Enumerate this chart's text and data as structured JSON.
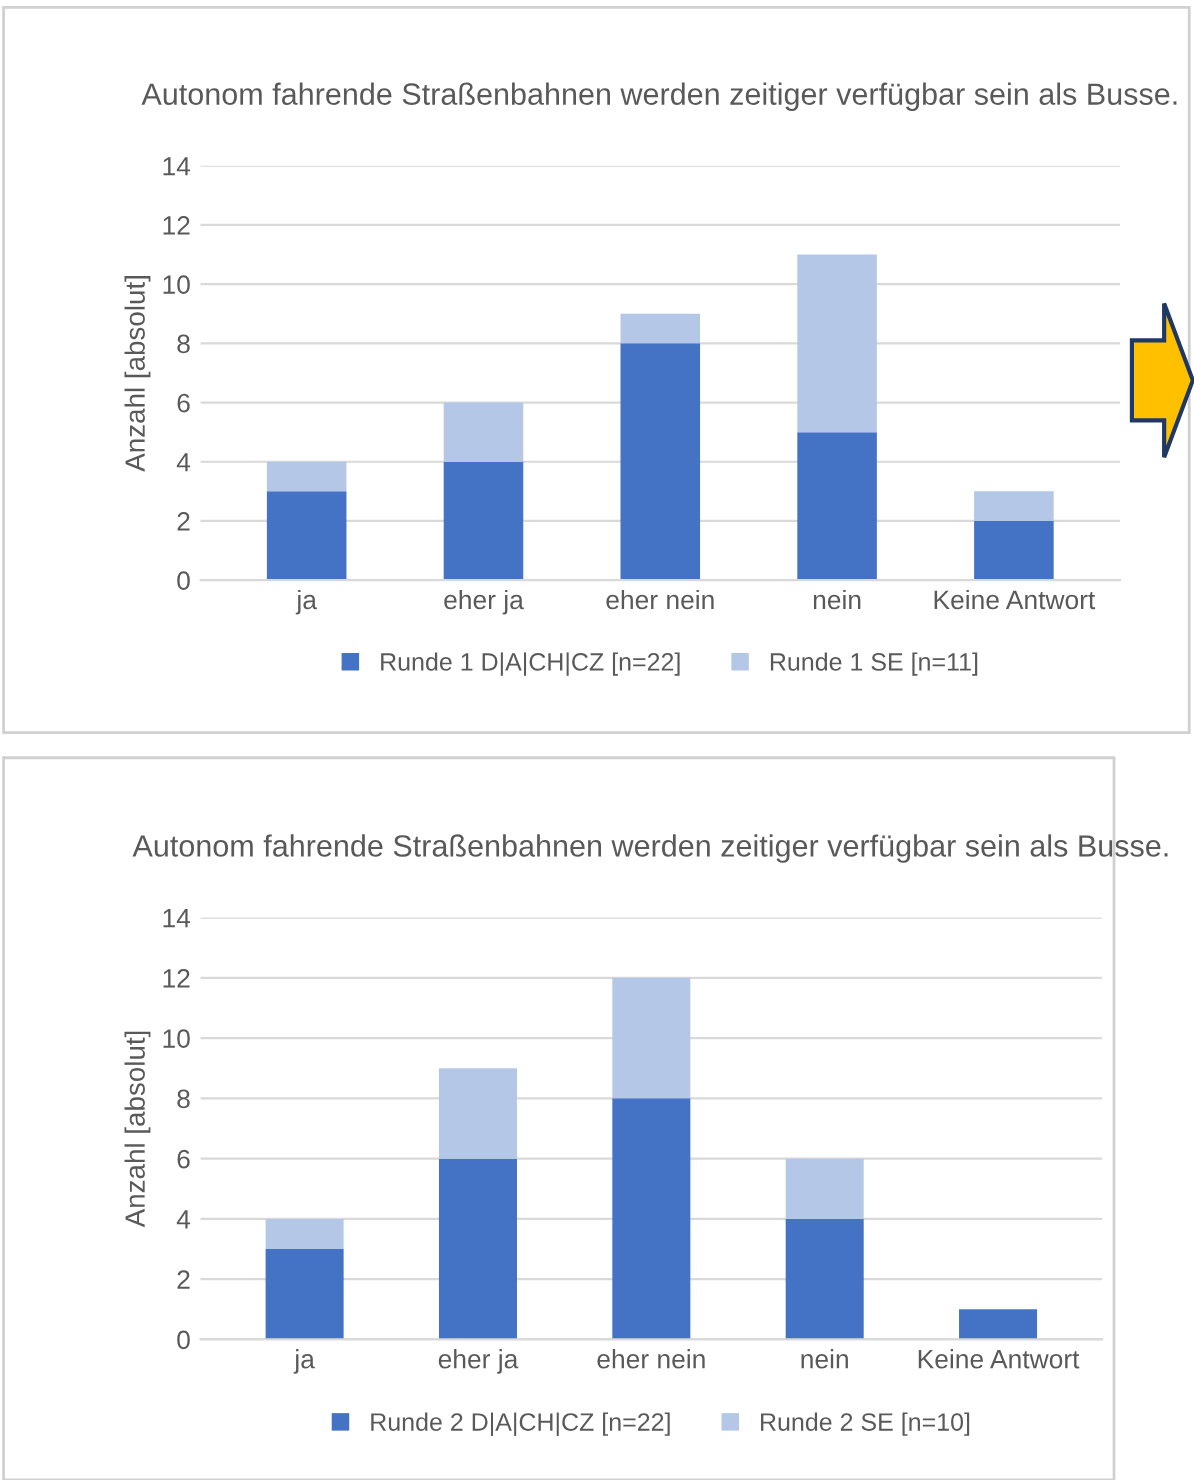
{
  "chart_data": [
    {
      "type": "bar",
      "stacked": true,
      "title": "Autonom fahrende Straßenbahnen werden zeitiger verfügbar sein als Busse.",
      "ylabel": "Anzahl [absolut]",
      "categories": [
        "ja",
        "eher ja",
        "eher nein",
        "nein",
        "Keine Antwort"
      ],
      "series": [
        {
          "name": "Runde 1 D|A|CH|CZ [n=22]",
          "color": "#4472c4",
          "values": [
            3,
            4,
            8,
            5,
            2
          ]
        },
        {
          "name": "Runde 1 SE [n=11]",
          "color": "#b4c7e7",
          "values": [
            1,
            2,
            1,
            6,
            1
          ]
        }
      ],
      "ylim": [
        0,
        14
      ],
      "yticks": [
        0,
        2,
        4,
        6,
        8,
        10,
        12,
        14
      ],
      "grid": "y",
      "legend": "bottom"
    },
    {
      "type": "bar",
      "stacked": true,
      "title": "Autonom fahrende Straßenbahnen werden zeitiger verfügbar sein als Busse.",
      "ylabel": "Anzahl [absolut]",
      "categories": [
        "ja",
        "eher ja",
        "eher nein",
        "nein",
        "Keine Antwort"
      ],
      "series": [
        {
          "name": "Runde 2 D|A|CH|CZ [n=22]",
          "color": "#4472c4",
          "values": [
            3,
            6,
            8,
            4,
            1
          ]
        },
        {
          "name": "Runde 2 SE [n=10]",
          "color": "#b4c7e7",
          "values": [
            1,
            3,
            4,
            2,
            0
          ]
        }
      ],
      "ylim": [
        0,
        14
      ],
      "yticks": [
        0,
        2,
        4,
        6,
        8,
        10,
        12,
        14
      ],
      "grid": "y",
      "legend": "bottom"
    }
  ]
}
